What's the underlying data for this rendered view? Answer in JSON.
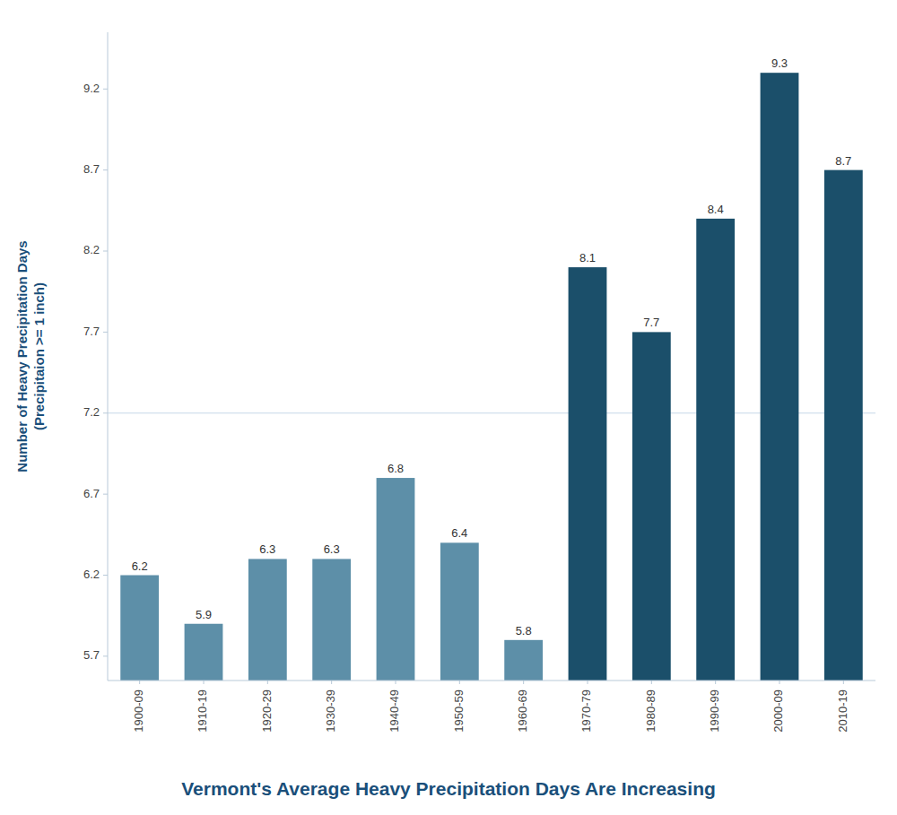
{
  "chart_data": {
    "type": "bar",
    "title": "Vermont's Average Heavy Precipitation Days Are Increasing",
    "ylabel": [
      "Number of Heavy Precipitation Days",
      "(Precipitaion >= 1 inch)"
    ],
    "categories": [
      "1900-09",
      "1910-19",
      "1920-29",
      "1930-39",
      "1940-49",
      "1950-59",
      "1960-69",
      "1970-79",
      "1980-89",
      "1990-99",
      "2000-09",
      "2010-19"
    ],
    "values": [
      6.2,
      5.9,
      6.3,
      6.3,
      6.8,
      6.4,
      5.8,
      8.1,
      7.7,
      8.4,
      9.3,
      8.7
    ],
    "colors": [
      "#5d8fa8",
      "#5d8fa8",
      "#5d8fa8",
      "#5d8fa8",
      "#5d8fa8",
      "#5d8fa8",
      "#5d8fa8",
      "#1b4f6a",
      "#1b4f6a",
      "#1b4f6a",
      "#1b4f6a",
      "#1b4f6a"
    ],
    "reference_line": 7.2,
    "ylim": [
      5.55,
      9.55
    ],
    "yticks": [
      5.7,
      6.2,
      6.7,
      7.2,
      7.7,
      8.2,
      8.7,
      9.2
    ],
    "grid": false,
    "data_labels": true
  }
}
